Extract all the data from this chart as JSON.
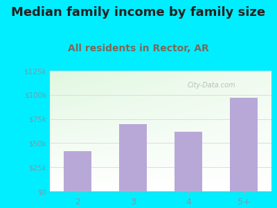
{
  "title": "Median family income by family size",
  "subtitle": "All residents in Rector, AR",
  "categories": [
    "2",
    "3",
    "4",
    "5+"
  ],
  "values": [
    42000,
    70000,
    62000,
    97000
  ],
  "bar_color": "#b8a8d8",
  "title_fontsize": 13,
  "subtitle_fontsize": 10,
  "title_color": "#222222",
  "subtitle_color": "#7a6a5a",
  "tick_color": "#7a9aaa",
  "background_outer": "#00eeff",
  "ylim": [
    0,
    125000
  ],
  "yticks": [
    0,
    25000,
    50000,
    75000,
    100000,
    125000
  ],
  "ytick_labels": [
    "$0",
    "$25k",
    "$50k",
    "$75k",
    "$100k",
    "$125k"
  ],
  "watermark": "City-Data.com",
  "grid_color": "#dddddd"
}
